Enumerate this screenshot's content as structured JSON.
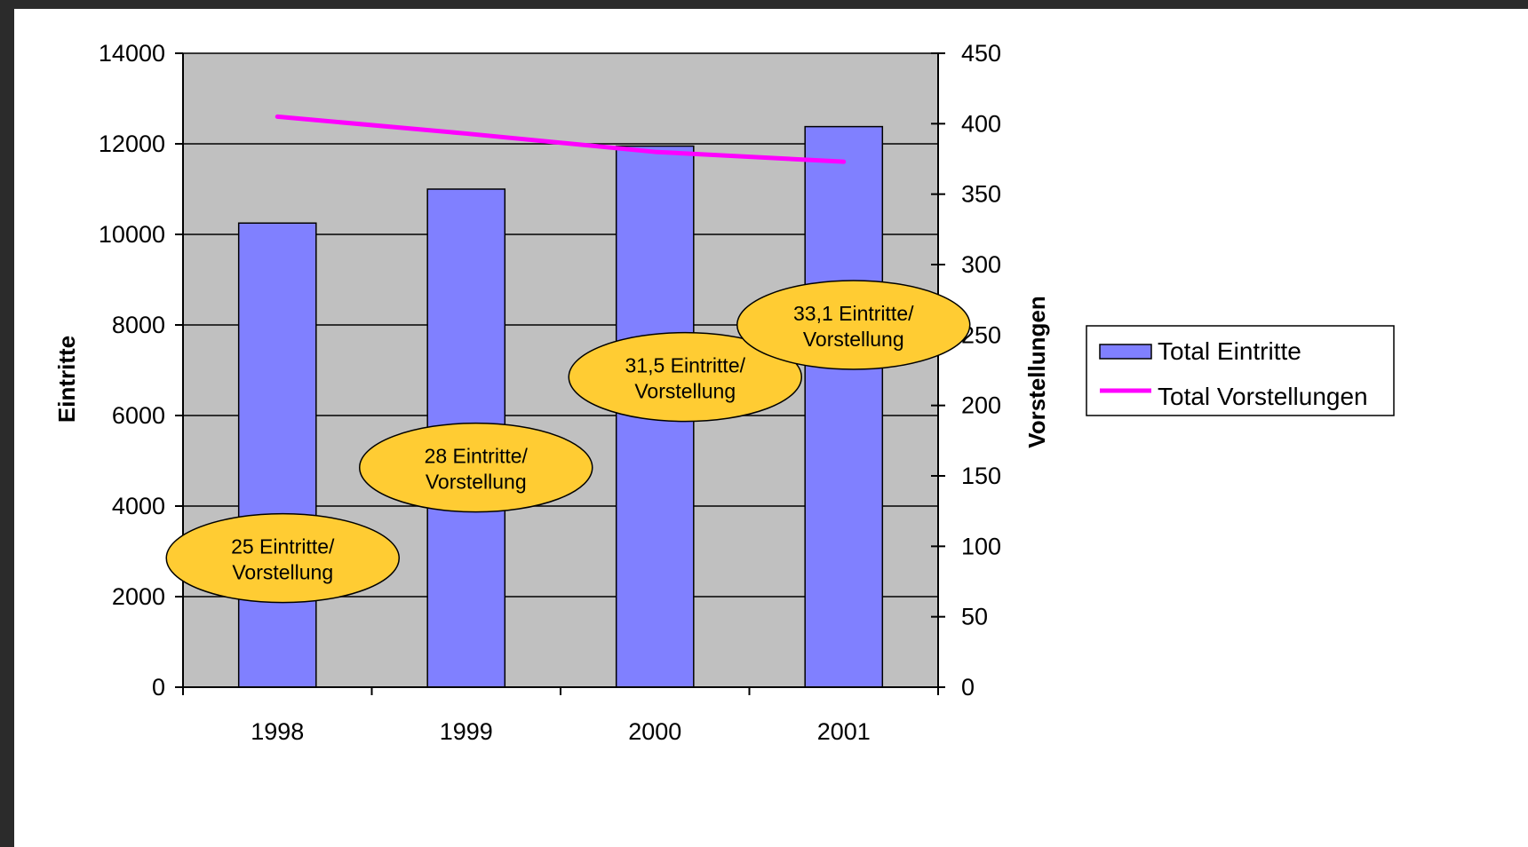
{
  "chart_data": {
    "type": "bar",
    "categories": [
      "1998",
      "1999",
      "2000",
      "2001"
    ],
    "series": [
      {
        "name": "Total Eintritte",
        "kind": "bar",
        "axis": "left",
        "color": "#8080ff",
        "values": [
          10250,
          11000,
          11950,
          12380
        ]
      },
      {
        "name": "Total Vorstellungen",
        "kind": "line",
        "axis": "right",
        "color": "#ff00ff",
        "values": [
          405,
          393,
          380,
          373
        ]
      }
    ],
    "ylabel": "Eintritte",
    "y2label": "Vorstellungen",
    "ylim": [
      0,
      14000
    ],
    "y2lim": [
      0,
      450
    ],
    "yticks": [
      "0",
      "2000",
      "4000",
      "6000",
      "8000",
      "10000",
      "12000",
      "14000"
    ],
    "y2ticks": [
      "0",
      "50",
      "100",
      "150",
      "200",
      "250",
      "300",
      "350",
      "400",
      "450"
    ],
    "grid": true,
    "plot_background": "#c0c0c0",
    "legend_position": "right",
    "annotations": [
      {
        "line1": "25 Eintritte/",
        "line2": "Vorstellung"
      },
      {
        "line1": "28 Eintritte/",
        "line2": "Vorstellung"
      },
      {
        "line1": "31,5 Eintritte/",
        "line2": "Vorstellung"
      },
      {
        "line1": "33,1 Eintritte/",
        "line2": "Vorstellung"
      }
    ],
    "annotation_color": "#ffcc33"
  }
}
